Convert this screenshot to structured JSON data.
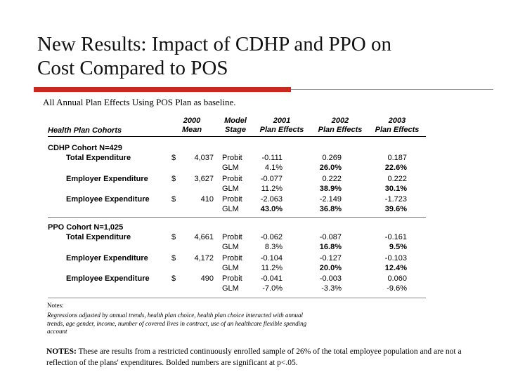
{
  "title": {
    "line1": "New Results: Impact of CDHP and PPO on",
    "line2": "Cost Compared to POS"
  },
  "subtitle": "All Annual Plan Effects Using POS Plan as baseline.",
  "colors": {
    "accent_red": "#c8281e",
    "rule_gray": "#9a9a9a"
  },
  "table": {
    "headers": {
      "cohorts": "Health Plan Cohorts",
      "mean_top": "2000",
      "mean_bottom": "Mean",
      "stage_top": "Model",
      "stage_bottom": "Stage",
      "y2001_top": "2001",
      "y2001_bottom": "Plan Effects",
      "y2002_top": "2002",
      "y2002_bottom": "Plan Effects",
      "y2003_top": "2003",
      "y2003_bottom": "Plan Effects"
    },
    "cdhp": {
      "cohort": "CDHP Cohort N=429",
      "rows": [
        {
          "label": "Total Expenditure",
          "dollar": "$",
          "mean": "4,037",
          "probit": [
            "Probit",
            "-0.111",
            "0.269",
            "0.187"
          ],
          "glm": [
            "GLM",
            "4.1%",
            "26.0%",
            "22.6%"
          ]
        },
        {
          "label": "Employer Expenditure",
          "dollar": "$",
          "mean": "3,627",
          "probit": [
            "Probit",
            "-0.077",
            "0.222",
            "0.222"
          ],
          "glm": [
            "GLM",
            "11.2%",
            "38.9%",
            "30.1%"
          ]
        },
        {
          "label": "Employee Expenditure",
          "dollar": "$",
          "mean": "410",
          "probit": [
            "Probit",
            "-2.063",
            "-2.149",
            "-1.723"
          ],
          "glm": [
            "GLM",
            "43.0%",
            "36.8%",
            "39.6%"
          ]
        }
      ]
    },
    "ppo": {
      "cohort": "PPO Cohort N=1,025",
      "rows": [
        {
          "label": "Total Expenditure",
          "dollar": "$",
          "mean": "4,661",
          "probit": [
            "Probit",
            "-0.062",
            "-0.087",
            "-0.161"
          ],
          "glm": [
            "GLM",
            "8.3%",
            "16.8%",
            "9.5%"
          ]
        },
        {
          "label": "Employer Expenditure",
          "dollar": "$",
          "mean": "4,172",
          "probit": [
            "Probit",
            "-0.104",
            "-0.127",
            "-0.103"
          ],
          "glm": [
            "GLM",
            "11.2%",
            "20.0%",
            "12.4%"
          ]
        },
        {
          "label": "Employee Expenditure",
          "dollar": "$",
          "mean": "490",
          "probit": [
            "Probit",
            "-0.041",
            "-0.003",
            "0.060"
          ],
          "glm": [
            "GLM",
            "-7.0%",
            "-3.3%",
            "-9.6%"
          ]
        }
      ]
    },
    "notes_label": "Notes:",
    "notes_text": "Regressions adjusted by annual trends, health plan choice, health plan choice interacted with annual trends, age gender, income, number of covered lives in contract, use of an healthcare flexible spending account"
  },
  "bottom_notes": {
    "label": "NOTES:",
    "text": " These are results from a restricted continuously enrolled sample of 26% of the total employee population and are not a reflection of the plans' expenditures.  Bolded numbers are significant at p<.05."
  }
}
